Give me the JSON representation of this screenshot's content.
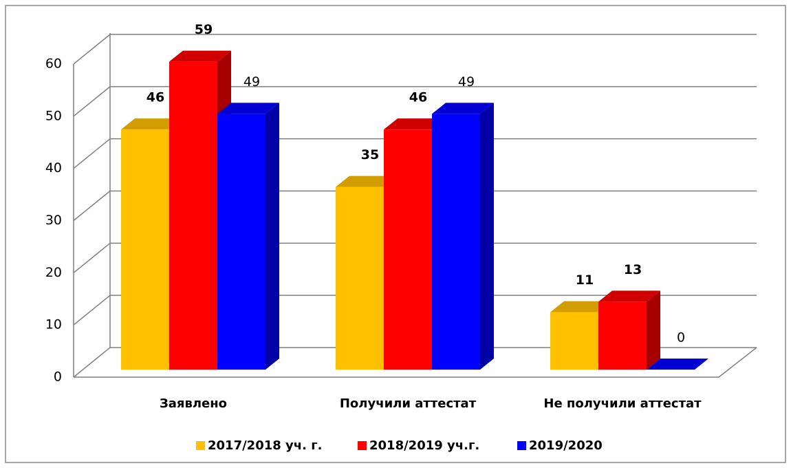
{
  "chart_data": {
    "type": "bar3d",
    "categories": [
      "Заявлено",
      "Получили аттестат",
      "Не получили аттестат"
    ],
    "series": [
      {
        "name": "2017/2018 уч. г.",
        "color": "#ffc000",
        "values": [
          46,
          35,
          11
        ]
      },
      {
        "name": "2018/2019 уч.г.",
        "color": "#ff0000",
        "values": [
          59,
          46,
          13
        ]
      },
      {
        "name": "2019/2020",
        "color": "#0000ff",
        "values": [
          49,
          49,
          0
        ]
      }
    ],
    "ylim": [
      0,
      60
    ],
    "yticks": [
      0,
      10,
      20,
      30,
      40,
      50,
      60
    ],
    "grid": true,
    "legend": "bottom"
  }
}
